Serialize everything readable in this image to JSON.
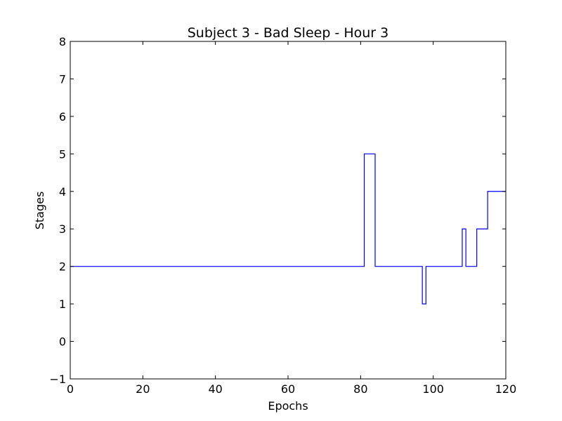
{
  "chart_data": {
    "type": "line",
    "step": true,
    "title": "Subject 3 - Bad Sleep - Hour 3",
    "xlabel": "Epochs",
    "ylabel": "Stages",
    "xlim": [
      0,
      120
    ],
    "ylim": [
      -1,
      8
    ],
    "xticks": [
      0,
      20,
      40,
      60,
      80,
      100,
      120
    ],
    "yticks": [
      -1,
      0,
      1,
      2,
      3,
      4,
      5,
      6,
      7,
      8
    ],
    "xtick_labels": [
      "0",
      "20",
      "40",
      "60",
      "80",
      "100",
      "120"
    ],
    "ytick_labels": [
      "−1",
      "0",
      "1",
      "2",
      "3",
      "4",
      "5",
      "6",
      "7",
      "8"
    ],
    "grid": false,
    "series": [
      {
        "color": "#0000ff",
        "x": [
          0,
          81,
          84,
          97,
          98,
          108,
          109,
          112,
          115,
          120
        ],
        "y": [
          2,
          5,
          2,
          1,
          2,
          3,
          2,
          3,
          4,
          4
        ]
      }
    ]
  }
}
